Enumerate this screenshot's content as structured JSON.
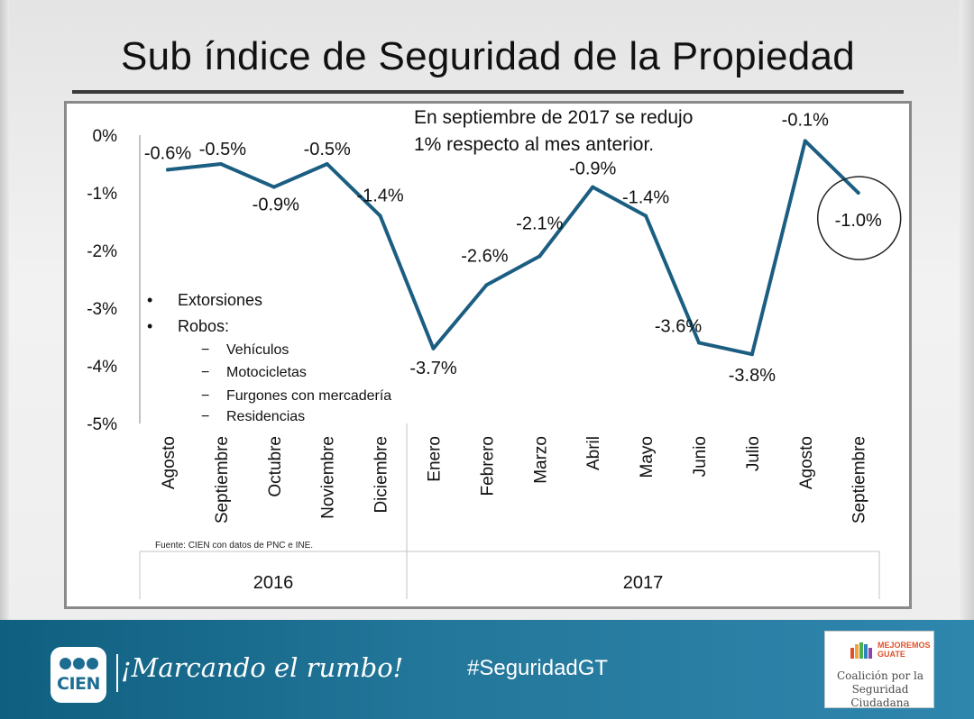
{
  "slide": {
    "title": "Sub índice de Seguridad de la Propiedad",
    "note_line1": "En septiembre de 2017 se redujo",
    "note_line2": "1% respecto al mes anterior.",
    "bullets": [
      "Extorsiones",
      "Robos:"
    ],
    "sub_bullets": [
      "Vehículos",
      "Motocicletas",
      "Furgones con mercadería",
      "Residencias"
    ],
    "bullet_marker": "•",
    "dash_marker": "−",
    "source": "Fuente: CIEN con datos de PNC e INE."
  },
  "chart_data": {
    "type": "line",
    "title": "Sub índice de Seguridad de la Propiedad",
    "categories": [
      "Agosto",
      "Septiembre",
      "Octubre",
      "Noviembre",
      "Diciembre",
      "Enero",
      "Febrero",
      "Marzo",
      "Abril",
      "Mayo",
      "Junio",
      "Julio",
      "Agosto",
      "Septiembre"
    ],
    "groups": [
      {
        "label": "2016",
        "count": 5
      },
      {
        "label": "2017",
        "count": 9
      }
    ],
    "series": [
      {
        "name": "Sub índice de Seguridad de la Propiedad",
        "color": "#1b5e82",
        "values": [
          -0.6,
          -0.5,
          -0.9,
          -0.5,
          -1.4,
          -3.7,
          -2.6,
          -2.1,
          -0.9,
          -1.4,
          -3.6,
          -3.8,
          -0.1,
          -1.0
        ],
        "labels": [
          "-0.6%",
          "-0.5%",
          "-0.9%",
          "-0.5%",
          "-1.4%",
          "-3.7%",
          "-2.6%",
          "-2.1%",
          "-0.9%",
          "-1.4%",
          "-3.6%",
          "-3.8%",
          "-0.1%",
          "-1.0%"
        ]
      }
    ],
    "yticks": [
      0,
      -1,
      -2,
      -3,
      -4,
      -5
    ],
    "ytick_labels": [
      "0%",
      "-1%",
      "-2%",
      "-3%",
      "-4%",
      "-5%"
    ],
    "ylim": [
      -5,
      0
    ],
    "xlabel": "",
    "ylabel": "",
    "grid": false,
    "highlight_index": 13
  },
  "footer": {
    "logo_text": "CIEN",
    "slogan": "¡Marcando el rumbo!",
    "hashtag": "#SeguridadGT",
    "partner_brand_line1": "MEJOREMOS",
    "partner_brand_line2": "GUATE",
    "partner_line1": "Coalición por la",
    "partner_line2": "Seguridad Ciudadana"
  },
  "colors": {
    "line": "#1b5e82",
    "footer": "#1f7398",
    "text": "#111111"
  }
}
